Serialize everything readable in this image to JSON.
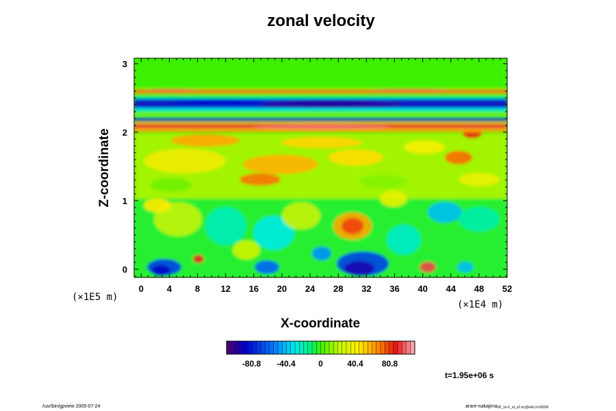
{
  "chart_data": {
    "type": "heatmap",
    "title": "zonal velocity",
    "xlabel": "X-coordinate",
    "ylabel": "Z-coordinate",
    "xlim": [
      -1,
      52
    ],
    "ylim": [
      -0.12,
      3.08
    ],
    "x_ticks": [
      0,
      4,
      8,
      12,
      16,
      20,
      24,
      28,
      32,
      36,
      40,
      44,
      48,
      52
    ],
    "x_tick_labels": [
      "0",
      "4",
      "8",
      "12",
      "16",
      "20",
      "24",
      "28",
      "32",
      "36",
      "40",
      "44",
      "48",
      "52"
    ],
    "y_ticks": [
      0,
      1,
      2,
      3
    ],
    "y_tick_labels": [
      "0",
      "1",
      "2",
      "3"
    ],
    "x_scale_note": "(×1E4 m)",
    "y_scale_note": "(×1E5 m)",
    "colorbar": {
      "range": [
        -110,
        110
      ],
      "ticks": [
        -80.8,
        -40.4,
        0,
        40.4,
        80.8
      ],
      "tick_labels": [
        "-80.8",
        "-40.4",
        "0",
        "40.4",
        "80.8"
      ],
      "levels": 44
    },
    "grid": false,
    "annotation_time": "t=1.95e+06 s"
  },
  "footer": {
    "left": "/usr/bin/gpview 2005-07-24",
    "right": "arare-nakajima",
    "right_sub": "05_1e-5_et_v2.nc@velU,t=18000"
  }
}
